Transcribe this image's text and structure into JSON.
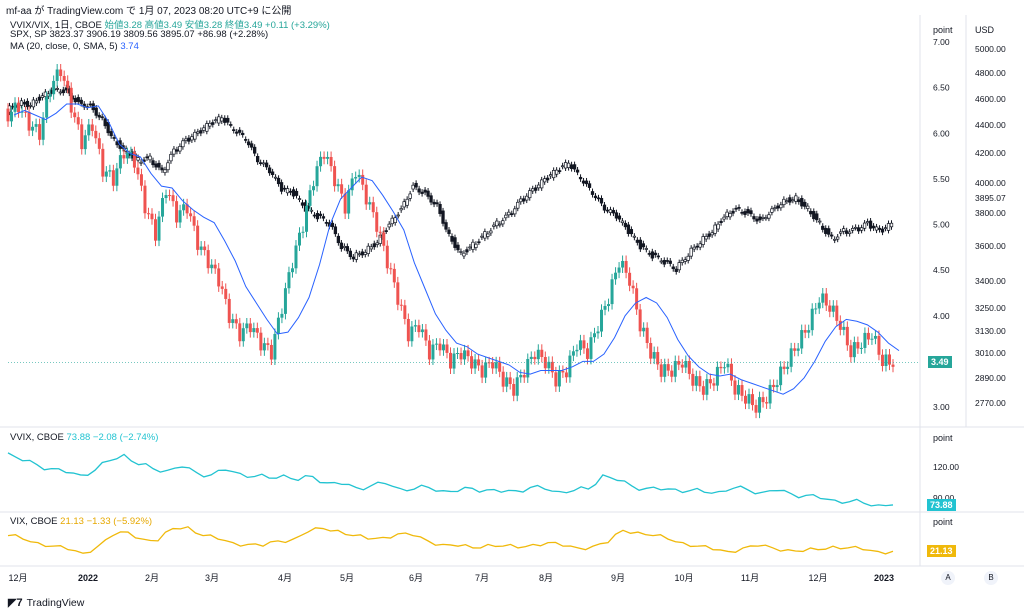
{
  "header": {
    "title": "mf-aa が TradingView.com で 1月 07, 2023 08:20 UTC+9 に公開"
  },
  "main_legend": {
    "line1_title": "VVIX/VIX, 1日, CBOE",
    "line1_values": "始値3.28 高値3.49 安値3.28 終値3.49 +0.11 (+3.29%)",
    "line2_title": "SPX, SP",
    "line2_values": "3823.37 3906.19 3809.56 3895.07 +86.98 (+2.28%)",
    "line3_title": "MA (20, close, 0, SMA, 5)",
    "line3_value": "3.74"
  },
  "vvix_legend": {
    "title": "VVIX, CBOE",
    "values": "73.88 −2.08 (−2.74%)"
  },
  "vix_legend": {
    "title": "VIX, CBOE",
    "values": "21.13 −1.33 (−5.92%)"
  },
  "axes": {
    "point_label": "point",
    "usd_label": "USD",
    "ratio_ticks": [
      "7.00",
      "6.50",
      "6.00",
      "5.50",
      "5.00",
      "4.50",
      "4.00",
      "3.00"
    ],
    "spx_ticks": [
      "5000.00",
      "4800.00",
      "4600.00",
      "4400.00",
      "4200.00",
      "4000.00",
      "3895.07",
      "3800.00",
      "3600.00",
      "3400.00",
      "3250.00",
      "3130.00",
      "3010.00",
      "2890.00",
      "2770.00"
    ],
    "vvix_point_label": "point",
    "vvix_ticks": [
      "120.00",
      "90.00"
    ],
    "vix_point_label": "point",
    "time_ticks": [
      "12月",
      "2022",
      "2月",
      "3月",
      "4月",
      "5月",
      "6月",
      "7月",
      "8月",
      "9月",
      "10月",
      "11月",
      "12月",
      "2023"
    ]
  },
  "badges": {
    "ratio_last": "3.49",
    "vvix_last": "73.88",
    "vix_last": "21.13"
  },
  "scale_buttons": {
    "a": "A",
    "b": "B"
  },
  "footer": {
    "brand": "TradingView"
  },
  "colors": {
    "up": "#26a69a",
    "down": "#ef5350",
    "ma": "#2962ff",
    "spx": "#131722",
    "vvix": "#22c3d1",
    "vix": "#f0b90b"
  },
  "chart_data": [
    {
      "type": "candlestick",
      "name": "VVIX/VIX",
      "x_range": [
        "2021-12",
        "2023-01"
      ],
      "ylim": [
        2.8,
        7.1
      ],
      "close_path": [
        6.2,
        6.3,
        6.1,
        6.0,
        6.5,
        6.7,
        6.3,
        5.9,
        6.1,
        5.6,
        5.5,
        5.8,
        5.7,
        5.2,
        4.9,
        5.4,
        5.1,
        5.2,
        4.8,
        4.6,
        4.4,
        4.0,
        3.8,
        3.9,
        3.7,
        3.6,
        4.1,
        4.6,
        5.0,
        5.5,
        5.8,
        5.5,
        5.2,
        5.6,
        5.3,
        5.0,
        4.6,
        4.2,
        3.8,
        3.9,
        3.6,
        3.7,
        3.5,
        3.6,
        3.5,
        3.4,
        3.5,
        3.3,
        3.2,
        3.4,
        3.6,
        3.5,
        3.3,
        3.4,
        3.7,
        3.6,
        3.9,
        4.2,
        4.6,
        4.4,
        3.9,
        3.6,
        3.4,
        3.4,
        3.5,
        3.3,
        3.2,
        3.3,
        3.5,
        3.2,
        3.1,
        3.0,
        3.1,
        3.3,
        3.5,
        3.7,
        3.9,
        4.2,
        4.1,
        3.9,
        3.6,
        3.7,
        3.8,
        3.5,
        3.49
      ],
      "last": 3.49
    },
    {
      "type": "line",
      "name": "SPX",
      "ylim": [
        2700,
        5050
      ],
      "values": [
        4650,
        4700,
        4690,
        4750,
        4790,
        4780,
        4700,
        4680,
        4590,
        4450,
        4380,
        4320,
        4330,
        4240,
        4380,
        4450,
        4500,
        4560,
        4600,
        4520,
        4460,
        4320,
        4250,
        4130,
        4100,
        4000,
        3950,
        3900,
        3750,
        3680,
        3720,
        3780,
        3900,
        4000,
        4150,
        4100,
        4020,
        3820,
        3700,
        3760,
        3830,
        3900,
        3960,
        4050,
        4120,
        4190,
        4250,
        4300,
        4200,
        4100,
        4000,
        3950,
        3850,
        3750,
        3690,
        3650,
        3600,
        3700,
        3780,
        3850,
        3950,
        4000,
        3970,
        3920,
        3990,
        4050,
        4070,
        4000,
        3900,
        3800,
        3850,
        3860,
        3900,
        3850,
        3895.07
      ],
      "last": 3895.07
    },
    {
      "type": "line",
      "name": "VVIX",
      "ylim": [
        70,
        150
      ],
      "values": [
        140,
        130,
        125,
        120,
        115,
        112,
        118,
        130,
        138,
        125,
        120,
        118,
        122,
        115,
        112,
        118,
        114,
        110,
        108,
        112,
        105,
        110,
        102,
        100,
        96,
        98,
        101,
        95,
        94,
        96,
        92,
        91,
        95,
        93,
        90,
        92,
        96,
        94,
        91,
        92,
        94,
        112,
        105,
        98,
        95,
        93,
        94,
        92,
        90,
        91,
        95,
        93,
        90,
        92,
        88,
        86,
        82,
        80,
        78,
        76,
        74,
        73.88
      ],
      "last": 73.88
    },
    {
      "type": "line",
      "name": "VIX",
      "ylim": [
        15,
        40
      ],
      "values": [
        30,
        28,
        26,
        24,
        22,
        20,
        24,
        30,
        32,
        28,
        27,
        34,
        35,
        30,
        28,
        26,
        25,
        24,
        27,
        28,
        32,
        34,
        33,
        30,
        28,
        29,
        31,
        30,
        27,
        25,
        24,
        23,
        25,
        24,
        23,
        25,
        26,
        24,
        23,
        24,
        26,
        33,
        32,
        30,
        28,
        26,
        24,
        22,
        21,
        23,
        24,
        23,
        22,
        21,
        22,
        24,
        23,
        22,
        21,
        21.13
      ],
      "last": 21.13
    }
  ]
}
